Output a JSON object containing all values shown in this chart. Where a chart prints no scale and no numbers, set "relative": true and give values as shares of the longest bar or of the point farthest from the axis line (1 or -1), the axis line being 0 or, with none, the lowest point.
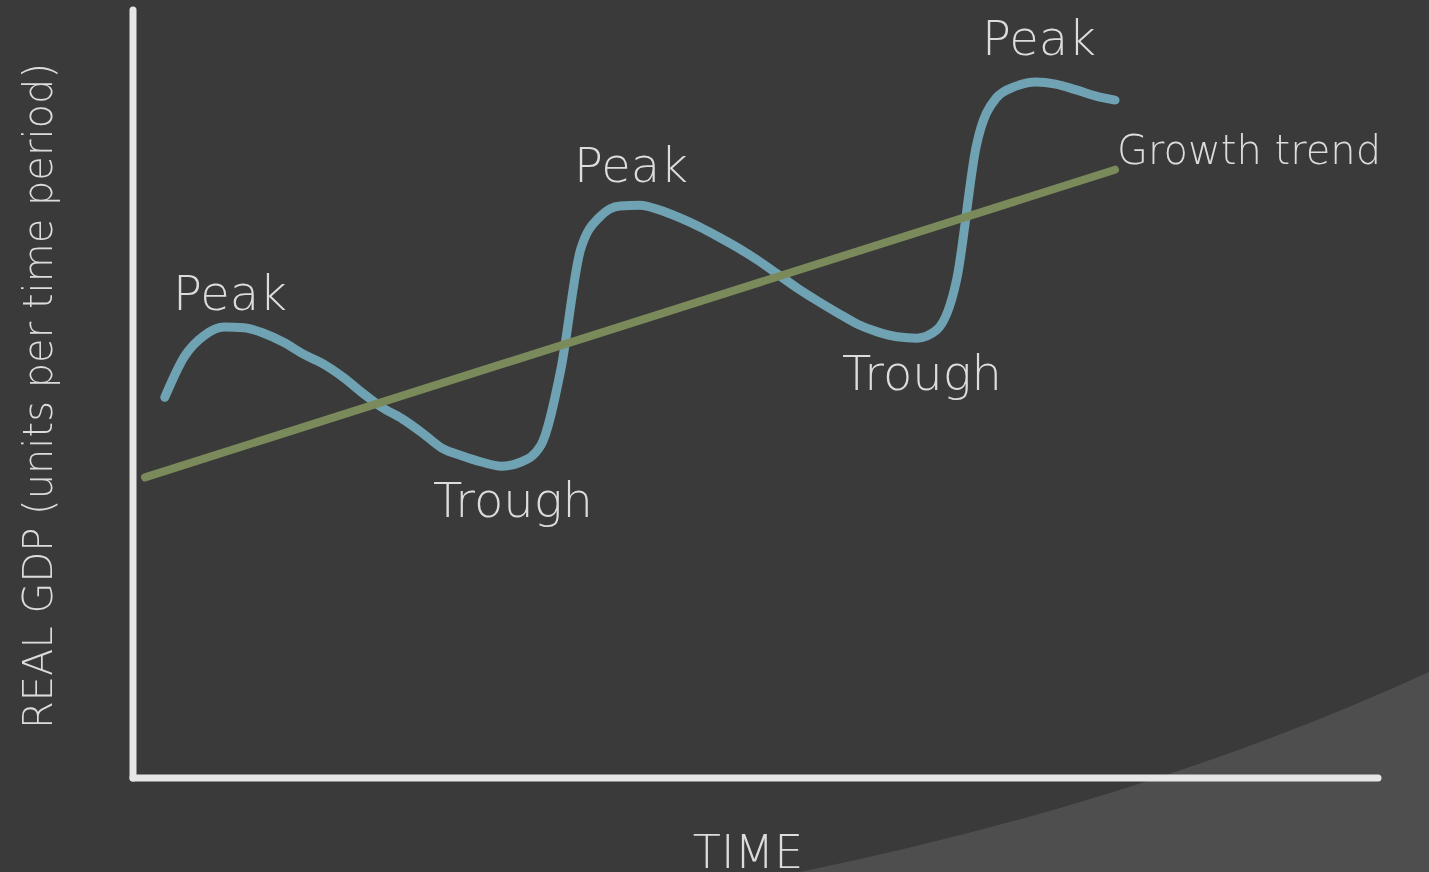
{
  "chart_data": {
    "type": "line",
    "relative": true,
    "xlabel": "TIME",
    "ylabel": "REAL GDP (units per time period)",
    "categories": [
      null,
      null,
      null,
      null,
      null,
      null,
      null,
      null,
      null,
      null,
      null,
      null,
      null,
      null,
      null,
      null,
      null,
      null,
      null,
      null,
      null,
      null,
      null,
      null,
      null,
      null,
      null,
      null,
      null,
      null,
      null,
      null,
      null,
      null,
      null,
      null,
      null,
      null,
      null,
      null,
      null,
      null,
      null,
      null,
      null,
      null,
      null,
      null,
      null,
      null
    ],
    "series": [
      {
        "color": "#6fa3b3",
        "values": [
          null,
          0.547,
          0.606,
          0.636,
          0.648,
          0.647,
          0.639,
          0.626,
          0.609,
          0.595,
          0.576,
          0.553,
          0.532,
          0.516,
          0.496,
          0.474,
          0.463,
          0.454,
          0.448,
          0.454,
          0.478,
          0.586,
          0.759,
          0.807,
          0.822,
          0.823,
          0.816,
          0.805,
          0.792,
          0.777,
          0.761,
          0.743,
          0.723,
          0.703,
          0.685,
          0.668,
          0.652,
          0.641,
          0.634,
          0.632,
          0.644,
          0.716,
          0.909,
          0.977,
          0.994,
          1,
          0.997,
          0.989,
          0.98,
          0.974
        ]
      },
      {
        "name": "Growth trend",
        "color": "#7a8a5a",
        "values": [
          0.432,
          null,
          null,
          null,
          null,
          null,
          null,
          null,
          null,
          null,
          null,
          null,
          null,
          null,
          null,
          null,
          null,
          null,
          null,
          null,
          null,
          null,
          null,
          null,
          null,
          null,
          null,
          null,
          null,
          null,
          null,
          null,
          null,
          null,
          null,
          null,
          null,
          null,
          null,
          null,
          null,
          null,
          null,
          null,
          null,
          null,
          null,
          null,
          null,
          0.874
        ]
      }
    ],
    "annotations": [
      "Peak",
      "Trough",
      "Peak",
      "Trough",
      "Peak"
    ],
    "line_style": "solid",
    "marker": "none"
  }
}
